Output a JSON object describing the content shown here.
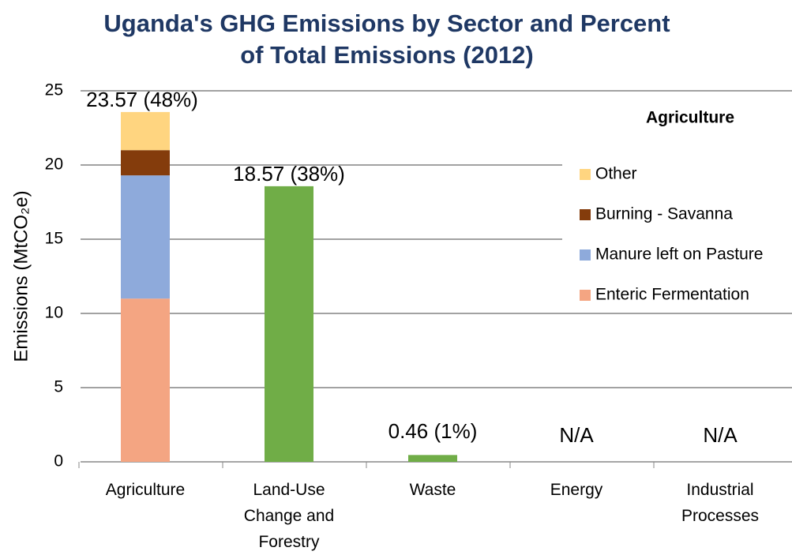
{
  "chart_data": {
    "type": "stacked_bar",
    "title": "Uganda's GHG Emissions by Sector and Percent of Total Emissions (2012)",
    "y_label": "Emissions (MtCO₂e)",
    "categories": [
      "Agriculture",
      "Land-Use Change and Forestry",
      "Waste",
      "Energy",
      "Industrial Processes"
    ],
    "series": [
      {
        "name": "Enteric Fermentation",
        "color": "#f4a582",
        "values": [
          11.0,
          null,
          null,
          null,
          null
        ]
      },
      {
        "name": "Manure left on Pasture",
        "color": "#8eaadb",
        "values": [
          8.3,
          null,
          null,
          null,
          null
        ]
      },
      {
        "name": "Burning - Savanna",
        "color": "#843c0c",
        "values": [
          1.7,
          null,
          null,
          null,
          null
        ]
      },
      {
        "name": "Other",
        "color": "#ffd580",
        "values": [
          2.57,
          null,
          null,
          null,
          null
        ]
      },
      {
        "color": "#70ad47",
        "values": [
          null,
          18.57,
          0.46,
          null,
          null
        ]
      }
    ],
    "totals": [
      23.57,
      18.57,
      0.46,
      null,
      null
    ],
    "value_labels": [
      "23.57 (48%)",
      "18.57 (38%)",
      "0.46 (1%)",
      "N/A",
      "N/A"
    ],
    "legend_title": "Agriculture",
    "legend": "upper right",
    "ylim": [
      0,
      25
    ],
    "yticks": [
      0,
      5,
      10,
      15,
      20,
      25
    ],
    "grid": true
  }
}
